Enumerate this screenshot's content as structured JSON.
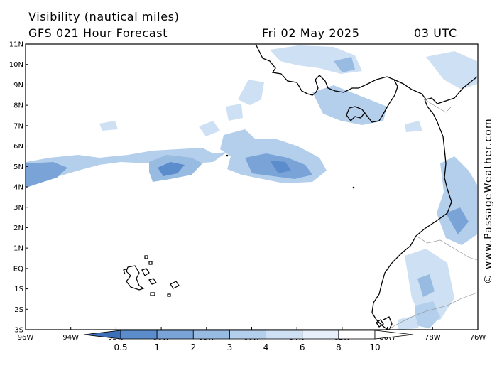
{
  "header": {
    "title": "Visibility (nautical miles)",
    "subtitle": "GFS 021 Hour Forecast",
    "date": "Fri 02 May 2025",
    "time": "03 UTC"
  },
  "credit": "© www.PassageWeather.com",
  "map": {
    "lon_range": [
      -96,
      -76
    ],
    "lat_range": [
      -3,
      11
    ],
    "lat_labels": [
      "11N",
      "10N",
      "9N",
      "8N",
      "7N",
      "6N",
      "5N",
      "4N",
      "3N",
      "2N",
      "1N",
      "EQ",
      "1S",
      "2S",
      "3S"
    ],
    "lon_labels": [
      "96W",
      "94W",
      "92W",
      "90W",
      "88W",
      "86W",
      "84W",
      "82W",
      "80W",
      "78W",
      "76W"
    ],
    "regions": [
      "Central America coast (Costa Rica / Panama)",
      "Colombia coast",
      "Ecuador coast",
      "Galapagos Islands",
      "Cocos Island",
      "Malpelo Island"
    ]
  },
  "colorbar": {
    "labels": [
      "0.5",
      "1",
      "2",
      "3",
      "4",
      "6",
      "8",
      "10"
    ],
    "colors": [
      "#3d6fb9",
      "#5b8ccb",
      "#7aa4d8",
      "#98bbe2",
      "#b4cfec",
      "#cee0f3",
      "#e7f0fa",
      "#ffffff"
    ]
  }
}
